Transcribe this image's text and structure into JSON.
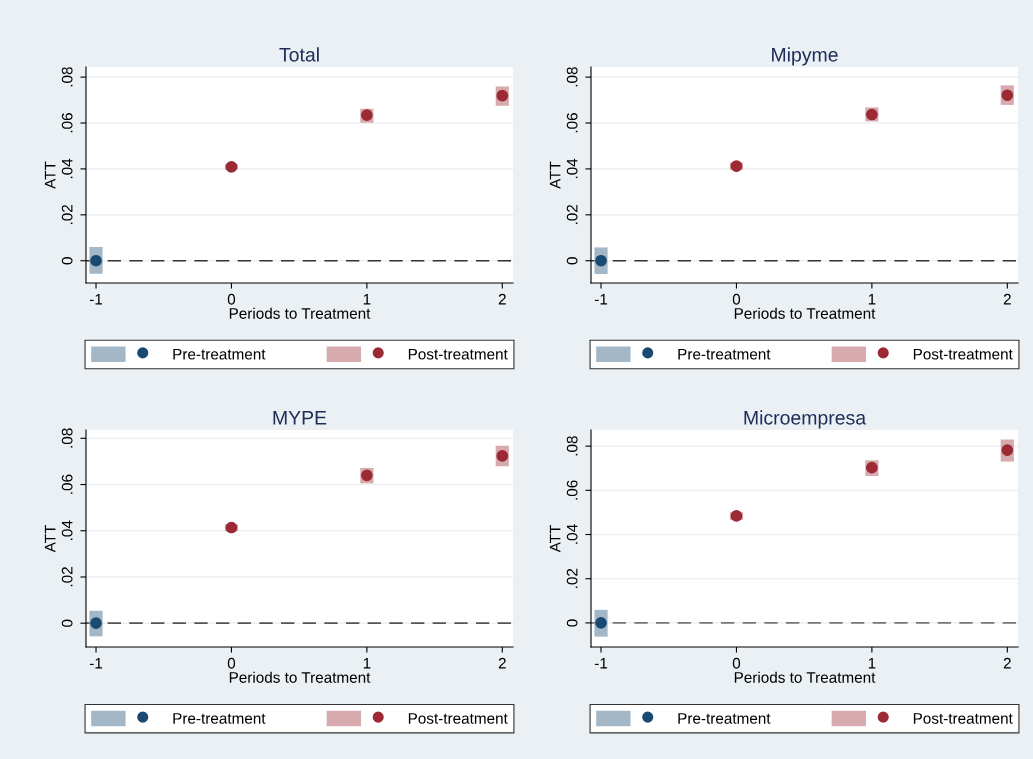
{
  "chart_data": [
    {
      "type": "scatter",
      "title": "Total",
      "xlabel": "Periods to Treatment",
      "ylabel": "ATT",
      "marker": "circle",
      "grid": "y",
      "legend": "bottom",
      "xlim": [
        -1.074,
        2.079
      ],
      "xticks": [
        -1,
        0,
        1,
        2
      ],
      "ylim": [
        -0.0097,
        0.0844
      ],
      "yticks": [
        0,
        {
          "value": 0.02,
          "label": ".02"
        },
        {
          "value": 0.04,
          "label": ".04"
        },
        {
          "value": 0.06,
          "label": ".06"
        },
        {
          "value": 0.08,
          "label": ".08"
        }
      ],
      "ref_lines": [
        {
          "axis": "y",
          "value": 0,
          "line_style": "dashed",
          "color": "#333333"
        }
      ],
      "series": [
        {
          "name": "Pre-treatment",
          "color": "#1a4a72",
          "x": [
            -1
          ],
          "values": [
            0
          ],
          "errors": [
            [
              -0.0057,
              0.006
            ]
          ]
        },
        {
          "name": "Post-treatment",
          "color": "#9b2a35",
          "x": [
            0,
            1,
            2
          ],
          "values": [
            0.0409,
            0.0634,
            0.0719
          ],
          "errors": [
            [
              0.0396,
              0.0422
            ],
            [
              0.0601,
              0.0662
            ],
            [
              0.0675,
              0.0759
            ]
          ]
        }
      ]
    },
    {
      "type": "scatter",
      "title": "Mipyme",
      "xlabel": "Periods to Treatment",
      "ylabel": "ATT",
      "marker": "circle",
      "grid": "y",
      "legend": "bottom",
      "xlim": [
        -1.074,
        2.079
      ],
      "xticks": [
        -1,
        0,
        1,
        2
      ],
      "ylim": [
        -0.0097,
        0.0844
      ],
      "yticks": [
        0,
        {
          "value": 0.02,
          "label": ".02"
        },
        {
          "value": 0.04,
          "label": ".04"
        },
        {
          "value": 0.06,
          "label": ".06"
        },
        {
          "value": 0.08,
          "label": ".08"
        }
      ],
      "ref_lines": [
        {
          "axis": "y",
          "value": 0,
          "line_style": "dashed",
          "color": "#333333"
        }
      ],
      "series": [
        {
          "name": "Pre-treatment",
          "color": "#1a4a72",
          "x": [
            -1
          ],
          "values": [
            0
          ],
          "errors": [
            [
              -0.0058,
              0.0058
            ]
          ]
        },
        {
          "name": "Post-treatment",
          "color": "#9b2a35",
          "x": [
            0,
            1,
            2
          ],
          "values": [
            0.0412,
            0.0637,
            0.0721
          ],
          "errors": [
            [
              0.0396,
              0.0428
            ],
            [
              0.0607,
              0.0668
            ],
            [
              0.0679,
              0.0764
            ]
          ]
        }
      ]
    },
    {
      "type": "scatter",
      "title": "MYPE",
      "xlabel": "Periods to Treatment",
      "ylabel": "ATT",
      "marker": "circle",
      "grid": "y",
      "legend": "bottom",
      "xlim": [
        -1.074,
        2.079
      ],
      "xticks": [
        -1,
        0,
        1,
        2
      ],
      "ylim": [
        -0.0103,
        0.0836
      ],
      "yticks": [
        0,
        {
          "value": 0.02,
          "label": ".02"
        },
        {
          "value": 0.04,
          "label": ".04"
        },
        {
          "value": 0.06,
          "label": ".06"
        },
        {
          "value": 0.08,
          "label": ".08"
        }
      ],
      "ref_lines": [
        {
          "axis": "y",
          "value": 0,
          "line_style": "dashed",
          "color": "#555555"
        }
      ],
      "series": [
        {
          "name": "Pre-treatment",
          "color": "#1a4a72",
          "x": [
            -1
          ],
          "values": [
            0
          ],
          "errors": [
            [
              -0.0057,
              0.0054
            ]
          ]
        },
        {
          "name": "Post-treatment",
          "color": "#9b2a35",
          "x": [
            0,
            1,
            2
          ],
          "values": [
            0.0414,
            0.064,
            0.0724
          ],
          "errors": [
            [
              0.0398,
              0.0428
            ],
            [
              0.0605,
              0.0672
            ],
            [
              0.0679,
              0.0768
            ]
          ]
        }
      ]
    },
    {
      "type": "scatter",
      "title": "Microempresa",
      "xlabel": "Periods to Treatment",
      "ylabel": "ATT",
      "marker": "circle",
      "grid": "y",
      "legend": "bottom",
      "xlim": [
        -1.074,
        2.079
      ],
      "xticks": [
        -1,
        0,
        1,
        2
      ],
      "ylim": [
        -0.0109,
        0.0873
      ],
      "yticks": [
        0,
        {
          "value": 0.02,
          "label": ".02"
        },
        {
          "value": 0.04,
          "label": ".04"
        },
        {
          "value": 0.06,
          "label": ".06"
        },
        {
          "value": 0.08,
          "label": ".08"
        }
      ],
      "ref_lines": [
        {
          "axis": "y",
          "value": 0,
          "line_style": "dashed",
          "color": "#777777"
        }
      ],
      "series": [
        {
          "name": "Pre-treatment",
          "color": "#1a4a72",
          "x": [
            -1
          ],
          "values": [
            0
          ],
          "errors": [
            [
              -0.0062,
              0.0059
            ]
          ]
        },
        {
          "name": "Post-treatment",
          "color": "#9b2a35",
          "x": [
            0,
            1,
            2
          ],
          "values": [
            0.0484,
            0.0703,
            0.0782
          ],
          "errors": [
            [
              0.0466,
              0.0501
            ],
            [
              0.0665,
              0.0736
            ],
            [
              0.073,
              0.083
            ]
          ]
        }
      ]
    }
  ]
}
